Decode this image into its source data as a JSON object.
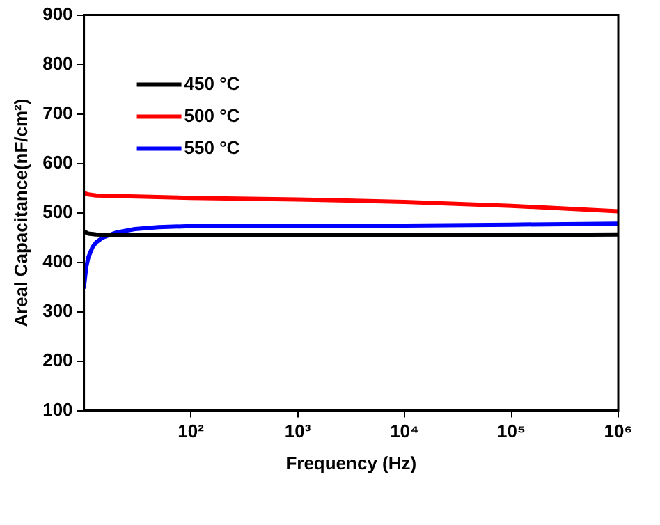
{
  "chart_data": {
    "type": "line",
    "xlabel": "Frequency (Hz)",
    "ylabel": "Areal Capacitance(nF/cm²)",
    "log": "x",
    "xlim": [
      10,
      1000000
    ],
    "ylim": [
      100,
      900
    ],
    "xticks": [
      {
        "value": 100,
        "label": "10²"
      },
      {
        "value": 1000,
        "label": "10³"
      },
      {
        "value": 10000,
        "label": "10⁴"
      },
      {
        "value": 100000,
        "label": "10⁵"
      },
      {
        "value": 1000000,
        "label": "10⁶"
      }
    ],
    "yticks": [
      100,
      200,
      300,
      400,
      500,
      600,
      700,
      800,
      900
    ],
    "grid": false,
    "legend": "top left",
    "marker": "none",
    "line_style": "solid",
    "series": [
      {
        "name": "450 °C",
        "color": "#000000",
        "x": [
          10,
          11,
          13,
          20,
          100,
          1000,
          10000,
          100000,
          1000000
        ],
        "values": [
          462,
          458,
          456,
          455,
          455,
          455,
          455,
          455,
          456
        ]
      },
      {
        "name": "500 °C",
        "color": "#ff0000",
        "x": [
          10,
          11,
          13,
          20,
          100,
          1000,
          10000,
          100000,
          1000000
        ],
        "values": [
          540,
          537,
          535,
          534,
          530,
          527,
          522,
          514,
          503
        ]
      },
      {
        "name": "550 °C",
        "color": "#0000ff",
        "x": [
          10,
          10.5,
          11,
          12,
          13,
          15,
          20,
          30,
          50,
          100,
          1000,
          10000,
          100000,
          1000000
        ],
        "values": [
          350,
          390,
          410,
          430,
          440,
          450,
          460,
          467,
          471,
          473,
          473,
          474,
          476,
          478
        ]
      }
    ]
  }
}
